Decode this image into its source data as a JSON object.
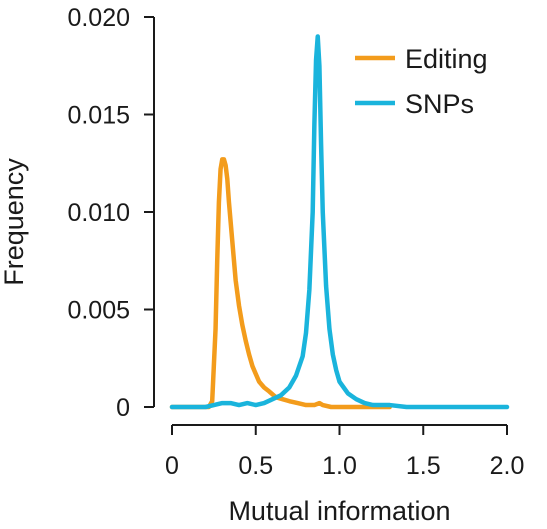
{
  "chart_data": {
    "type": "line",
    "title": "",
    "xlabel": "Mutual information",
    "ylabel": "Frequency",
    "xlim": [
      0,
      2.0
    ],
    "ylim": [
      0,
      0.02
    ],
    "x_ticks": [
      0,
      0.5,
      1.0,
      1.5,
      2.0
    ],
    "x_tick_labels": [
      "0",
      "0.5",
      "1.0",
      "1.5",
      "2.0"
    ],
    "y_ticks": [
      0,
      0.005,
      0.01,
      0.015,
      0.02
    ],
    "y_tick_labels": [
      "0",
      "0.005",
      "0.010",
      "0.015",
      "0.020"
    ],
    "grid": false,
    "legend_position": "top-right",
    "series": [
      {
        "name": "Editing",
        "color": "#f39c1c",
        "x": [
          0.0,
          0.1,
          0.2,
          0.22,
          0.24,
          0.26,
          0.27,
          0.28,
          0.29,
          0.3,
          0.31,
          0.32,
          0.33,
          0.34,
          0.36,
          0.38,
          0.4,
          0.42,
          0.44,
          0.46,
          0.48,
          0.5,
          0.52,
          0.55,
          0.58,
          0.62,
          0.66,
          0.7,
          0.75,
          0.8,
          0.85,
          0.88,
          0.9,
          0.95,
          1.0,
          1.1,
          1.2,
          1.3
        ],
        "y": [
          0.0,
          0.0,
          0.0,
          0.0,
          0.0003,
          0.004,
          0.0075,
          0.0105,
          0.0122,
          0.0127,
          0.0127,
          0.0124,
          0.0117,
          0.0105,
          0.0085,
          0.0065,
          0.0052,
          0.0042,
          0.0034,
          0.0027,
          0.0021,
          0.0017,
          0.0013,
          0.001,
          0.0008,
          0.0005,
          0.0004,
          0.0003,
          0.0002,
          0.0001,
          0.0001,
          0.0002,
          0.0001,
          0.0,
          0.0,
          0.0,
          0.0,
          0.0
        ]
      },
      {
        "name": "SNPs",
        "color": "#1ab4dc",
        "x": [
          0.0,
          0.1,
          0.2,
          0.25,
          0.3,
          0.35,
          0.4,
          0.45,
          0.5,
          0.55,
          0.6,
          0.65,
          0.7,
          0.74,
          0.78,
          0.8,
          0.82,
          0.84,
          0.85,
          0.86,
          0.87,
          0.88,
          0.89,
          0.9,
          0.92,
          0.94,
          0.96,
          0.98,
          1.0,
          1.05,
          1.1,
          1.15,
          1.2,
          1.3,
          1.4,
          1.6,
          1.8,
          2.0
        ],
        "y": [
          0.0,
          0.0,
          0.0,
          0.0001,
          0.0002,
          0.0002,
          0.0001,
          0.0002,
          0.0001,
          0.0002,
          0.0004,
          0.0006,
          0.001,
          0.0016,
          0.0026,
          0.0038,
          0.006,
          0.01,
          0.0145,
          0.0178,
          0.019,
          0.0175,
          0.0135,
          0.01,
          0.0062,
          0.004,
          0.0027,
          0.0019,
          0.0013,
          0.0007,
          0.0004,
          0.0002,
          0.0001,
          0.0001,
          0.0,
          0.0,
          0.0,
          0.0
        ]
      }
    ]
  }
}
